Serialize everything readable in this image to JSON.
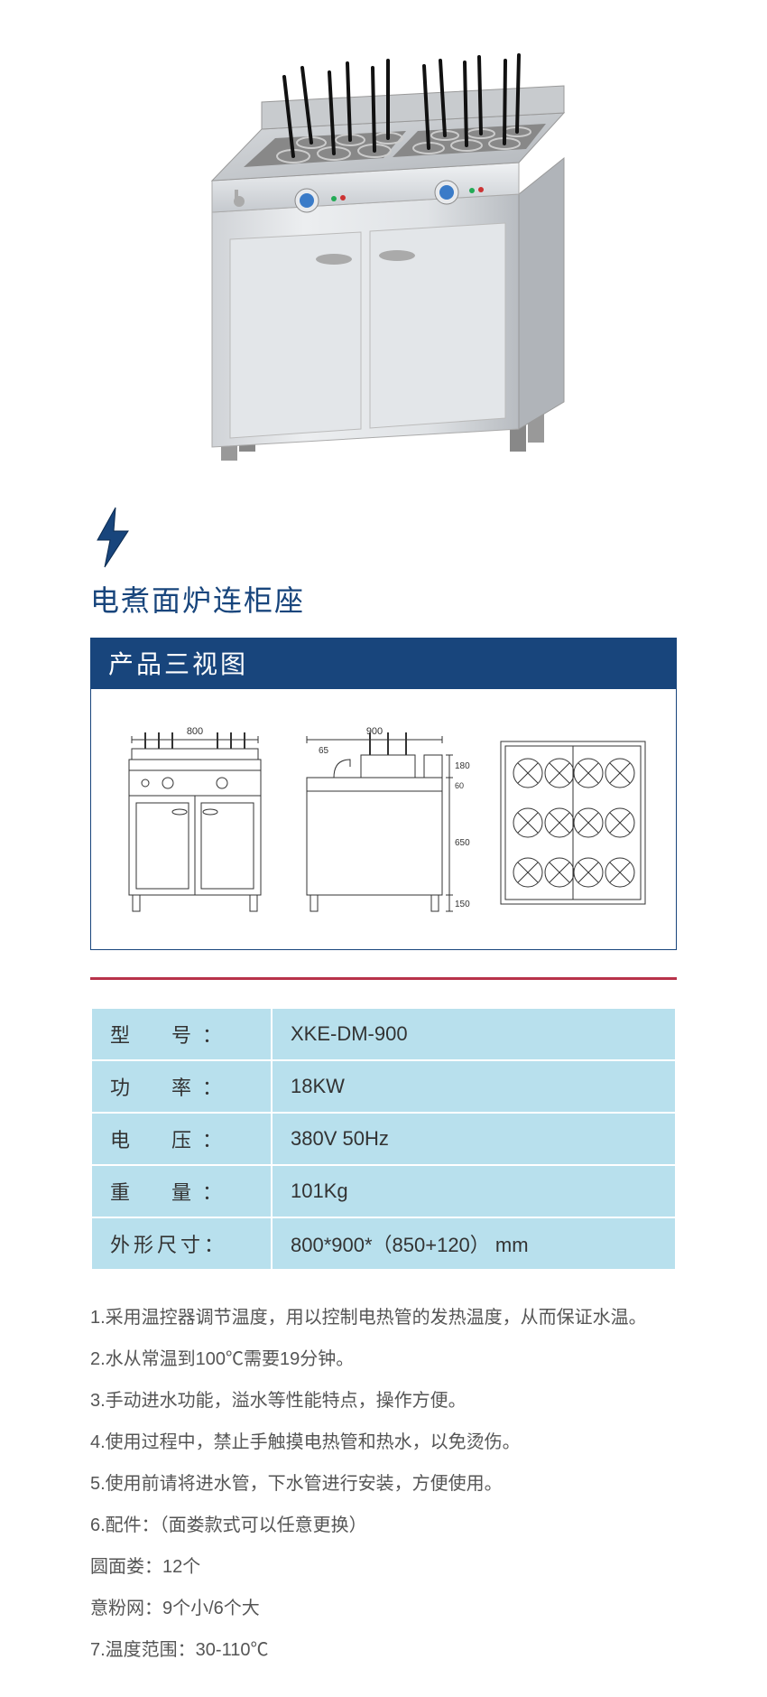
{
  "product": {
    "title": "电煮面炉连柜座"
  },
  "section_titles": {
    "three_views": "产品三视图"
  },
  "diagrams": {
    "front": {
      "width_label": "800"
    },
    "side": {
      "width_label": "900",
      "offset_label": "65",
      "h1": "180",
      "h2": "60",
      "h3": "650",
      "h4": "150"
    },
    "top": {}
  },
  "specs": [
    {
      "label": "型　号：",
      "value": "XKE-DM-900",
      "tight": false
    },
    {
      "label": "功　率：",
      "value": "18KW",
      "tight": false
    },
    {
      "label": "电　压：",
      "value": "380V  50Hz",
      "tight": false
    },
    {
      "label": "重　量：",
      "value": "101Kg",
      "tight": false
    },
    {
      "label": "外形尺寸：",
      "value": "800*900*（850+120） mm",
      "tight": true
    }
  ],
  "description_lines": [
    "1.采用温控器调节温度，用以控制电热管的发热温度，从而保证水温。",
    "2.水从常温到100℃需要19分钟。",
    "3.手动进水功能，溢水等性能特点，操作方便。",
    "4.使用过程中，禁止手触摸电热管和热水，以免烫伤。",
    "5.使用前请将进水管，下水管进行安装，方便使用。",
    "6.配件：（面娄款式可以任意更换）",
    "圆面娄：12个",
    "意粉网：9个小/6个大",
    "7.温度范围：30-110℃"
  ],
  "colors": {
    "primary": "#18457c",
    "accent_red": "#b8324a",
    "table_bg": "#b8e0ed",
    "steel_light": "#e8eaed",
    "steel_mid": "#c5c9ce",
    "steel_dark": "#9ba0a6",
    "knob_blue": "#3a7bc8"
  }
}
